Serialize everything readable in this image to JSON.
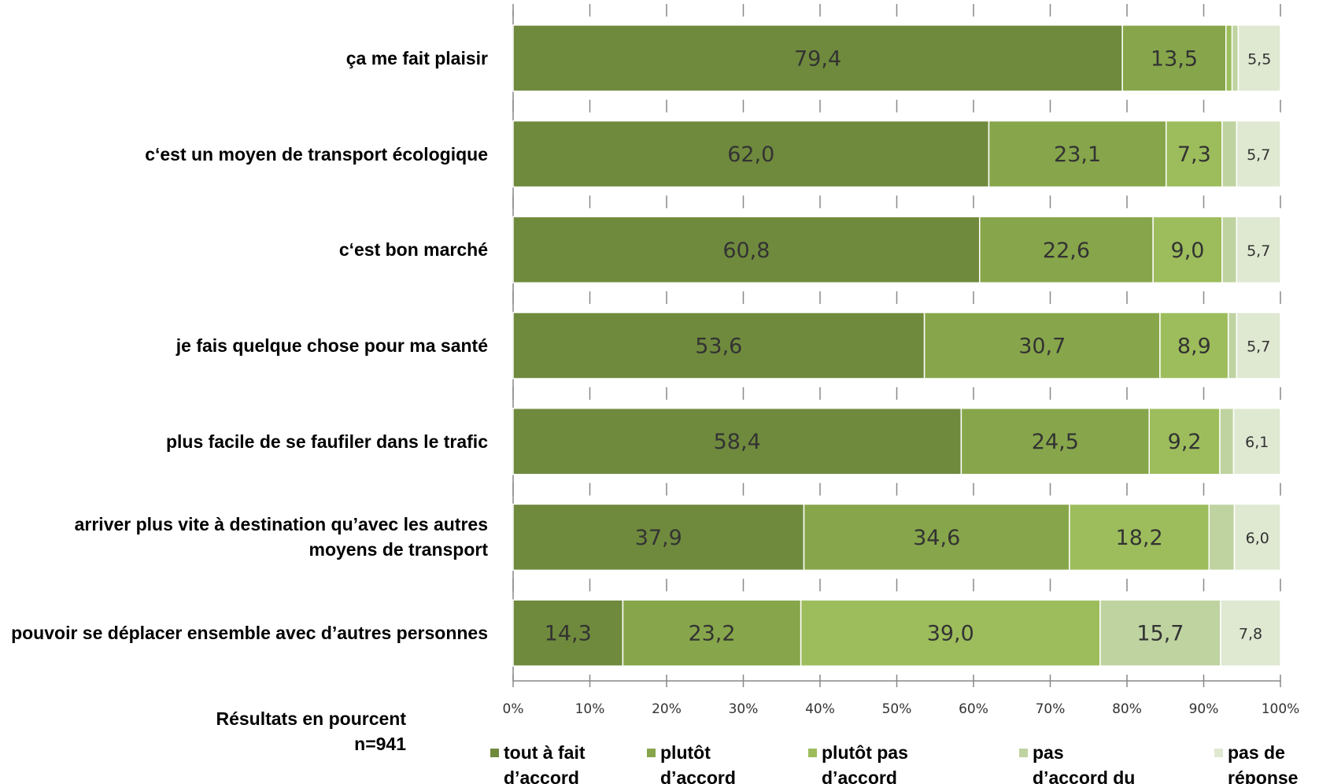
{
  "chart_data": {
    "type": "stacked-barh",
    "categories": [
      "ça me fait plaisir",
      "c‘est un moyen de transport écologique",
      "c‘est bon marché",
      "je fais quelque chose pour ma santé",
      "plus facile de se faufiler dans le trafic",
      "arriver plus vite à destination qu’avec les autres moyens de transport",
      "pouvoir se déplacer ensemble avec d’autres personnes"
    ],
    "series": [
      {
        "name": "tout à fait d’accord",
        "color": "#6f8a3d",
        "values": [
          79.4,
          62.0,
          60.8,
          53.6,
          58.4,
          37.9,
          14.3
        ],
        "value_labels": [
          "79,4",
          "62,0",
          "60,8",
          "53,6",
          "58,4",
          "37,9",
          "14,3"
        ]
      },
      {
        "name": "plutôt d’accord",
        "color": "#87a64b",
        "values": [
          13.5,
          23.1,
          22.6,
          30.7,
          24.5,
          34.6,
          23.2
        ],
        "value_labels": [
          "13,5",
          "23,1",
          "22,6",
          "30,7",
          "24,5",
          "34,6",
          "23,2"
        ]
      },
      {
        "name": "plutôt pas d’accord",
        "color": "#9dbd5c",
        "values": [
          0.8,
          7.3,
          9.0,
          8.9,
          9.2,
          18.2,
          39.0
        ],
        "value_labels": [
          null,
          "7,3",
          "9,0",
          "8,9",
          "9,2",
          "18,2",
          "39,0"
        ]
      },
      {
        "name": "pas d’accord du tout",
        "color": "#bfd3a1",
        "values": [
          0.8,
          1.9,
          1.9,
          1.1,
          1.8,
          3.3,
          15.7
        ],
        "value_labels": [
          null,
          null,
          null,
          null,
          null,
          null,
          "15,7"
        ]
      },
      {
        "name": "pas de réponse",
        "color": "#dfe8d1",
        "values": [
          5.5,
          5.7,
          5.7,
          5.7,
          6.1,
          6.0,
          7.8
        ],
        "value_labels": [
          "5,5",
          "5,7",
          "5,7",
          "5,7",
          "6,1",
          "6,0",
          "7,8"
        ]
      }
    ],
    "xlim": [
      0,
      100
    ],
    "xticks": [
      {
        "value": 0,
        "label": "0%"
      },
      {
        "value": 10,
        "label": "10%"
      },
      {
        "value": 20,
        "label": "20%"
      },
      {
        "value": 30,
        "label": "30%"
      },
      {
        "value": 40,
        "label": "40%"
      },
      {
        "value": 50,
        "label": "50%"
      },
      {
        "value": 60,
        "label": "60%"
      },
      {
        "value": 70,
        "label": "70%"
      },
      {
        "value": 80,
        "label": "80%"
      },
      {
        "value": 90,
        "label": "90%"
      },
      {
        "value": 100,
        "label": "100%"
      }
    ],
    "notes": [
      "Résultats en pourcent",
      "n=941"
    ],
    "legend": "bottom"
  }
}
